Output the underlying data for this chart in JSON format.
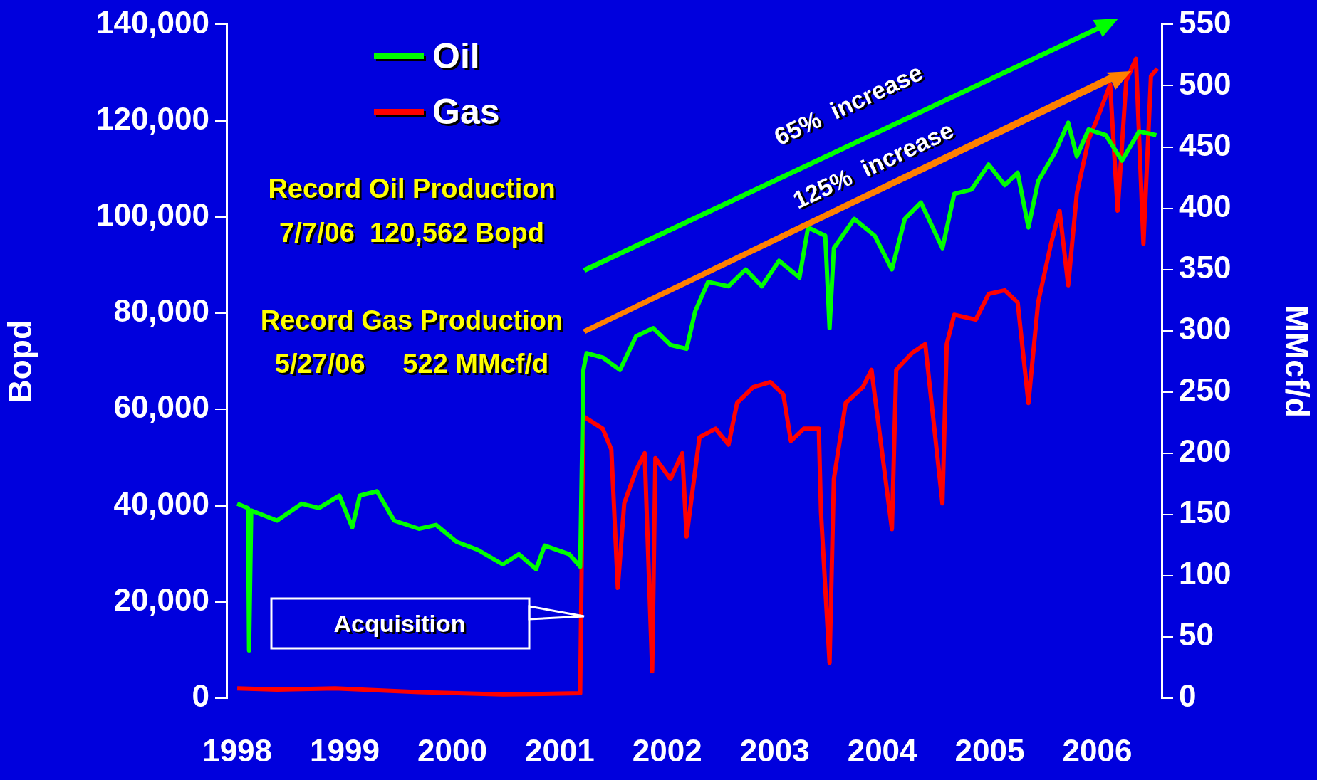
{
  "chart_data": {
    "type": "line",
    "xlabel": null,
    "ylabel": "Bopd",
    "y2label": "MMcf/d",
    "legend": "top left",
    "xlim": [
      1997.9,
      2006.6
    ],
    "xticks": [
      1998,
      1999,
      2000,
      2001,
      2002,
      2003,
      2004,
      2005,
      2006
    ],
    "ylim": [
      0,
      140000
    ],
    "yticks": [
      0,
      {
        "value": 20000,
        "label": "20,000"
      },
      {
        "value": 40000,
        "label": "40,000"
      },
      {
        "value": 60000,
        "label": "60,000"
      },
      {
        "value": 80000,
        "label": "80,000"
      },
      {
        "value": 100000,
        "label": "100,000"
      },
      {
        "value": 120000,
        "label": "120,000"
      },
      {
        "value": 140000,
        "label": "140,000"
      }
    ],
    "y2lim": [
      0,
      550
    ],
    "y2ticks": [
      0,
      50,
      100,
      150,
      200,
      250,
      300,
      350,
      400,
      450,
      500,
      550
    ],
    "series": [
      {
        "name": "Oil",
        "color": "#00ff00",
        "x": [
          1998.0,
          1998.1,
          1998.11,
          1998.13,
          1998.37,
          1998.6,
          1998.76,
          1998.95,
          1999.07,
          1999.14,
          1999.3,
          1999.46,
          1999.69,
          1999.85,
          2000.04,
          2000.24,
          2000.47,
          2000.62,
          2000.78,
          2000.86,
          2001.09,
          2001.19,
          2001.22,
          2001.25,
          2001.4,
          2001.56,
          2001.71,
          2001.87,
          2002.03,
          2002.18,
          2002.26,
          2002.38,
          2002.57,
          2002.73,
          2002.88,
          2003.04,
          2003.23,
          2003.31,
          2003.47,
          2003.51,
          2003.55,
          2003.74,
          2003.93,
          2004.09,
          2004.21,
          2004.36,
          2004.56,
          2004.67,
          2004.83,
          2004.99,
          2005.14,
          2005.26,
          2005.36,
          2005.45,
          2005.61,
          2005.73,
          2005.81,
          2005.92,
          2006.08,
          2006.23,
          2006.39,
          2006.55
        ],
        "values": [
          40400,
          39500,
          9900,
          39000,
          36900,
          40400,
          39500,
          42100,
          35500,
          42100,
          43000,
          36900,
          35200,
          36000,
          32500,
          30800,
          27800,
          29900,
          26800,
          31700,
          29900,
          27300,
          68200,
          71700,
          70800,
          68200,
          75200,
          76900,
          73400,
          72600,
          80400,
          86500,
          85600,
          89100,
          85600,
          90900,
          87400,
          97800,
          96100,
          76900,
          93500,
          99600,
          96100,
          89100,
          99600,
          103000,
          93500,
          104800,
          105700,
          110900,
          106600,
          109200,
          97800,
          107400,
          113500,
          119600,
          112600,
          118200,
          117000,
          111700,
          117800,
          117000
        ]
      },
      {
        "name": "Gas",
        "color": "#ff0000",
        "axis": "y2",
        "x": [
          1998.0,
          1998.37,
          1998.91,
          1999.69,
          2000.47,
          2001.19,
          2001.22,
          2001.4,
          2001.48,
          2001.54,
          2001.6,
          2001.71,
          2001.79,
          2001.86,
          2001.89,
          2002.03,
          2002.14,
          2002.18,
          2002.3,
          2002.45,
          2002.57,
          2002.65,
          2002.8,
          2002.96,
          2003.08,
          2003.15,
          2003.27,
          2003.41,
          2003.43,
          2003.51,
          2003.55,
          2003.66,
          2003.82,
          2003.9,
          2004.09,
          2004.13,
          2004.28,
          2004.4,
          2004.56,
          2004.6,
          2004.67,
          2004.87,
          2004.99,
          2005.14,
          2005.26,
          2005.36,
          2005.45,
          2005.57,
          2005.65,
          2005.73,
          2005.81,
          2005.92,
          2006.0,
          2006.12,
          2006.19,
          2006.27,
          2006.36,
          2006.43,
          2006.5,
          2006.56
        ],
        "values": [
          8,
          7,
          8,
          5,
          3,
          4,
          230,
          220,
          203,
          90,
          159,
          186,
          200,
          22,
          196,
          179,
          200,
          132,
          213,
          220,
          207,
          241,
          254,
          258,
          248,
          210,
          220,
          220,
          152,
          29,
          179,
          241,
          254,
          268,
          138,
          268,
          282,
          289,
          159,
          289,
          313,
          309,
          330,
          333,
          323,
          241,
          323,
          371,
          398,
          337,
          412,
          456,
          473,
          501,
          398,
          504,
          522,
          371,
          508,
          514
        ]
      }
    ],
    "annotations": [
      "Record Oil Production",
      "7/7/06  120,562 Bopd",
      "Record Gas Production",
      "5/27/06     522 MMcf/d",
      "65%  increase",
      "125%  increase",
      "Acquisition"
    ]
  }
}
